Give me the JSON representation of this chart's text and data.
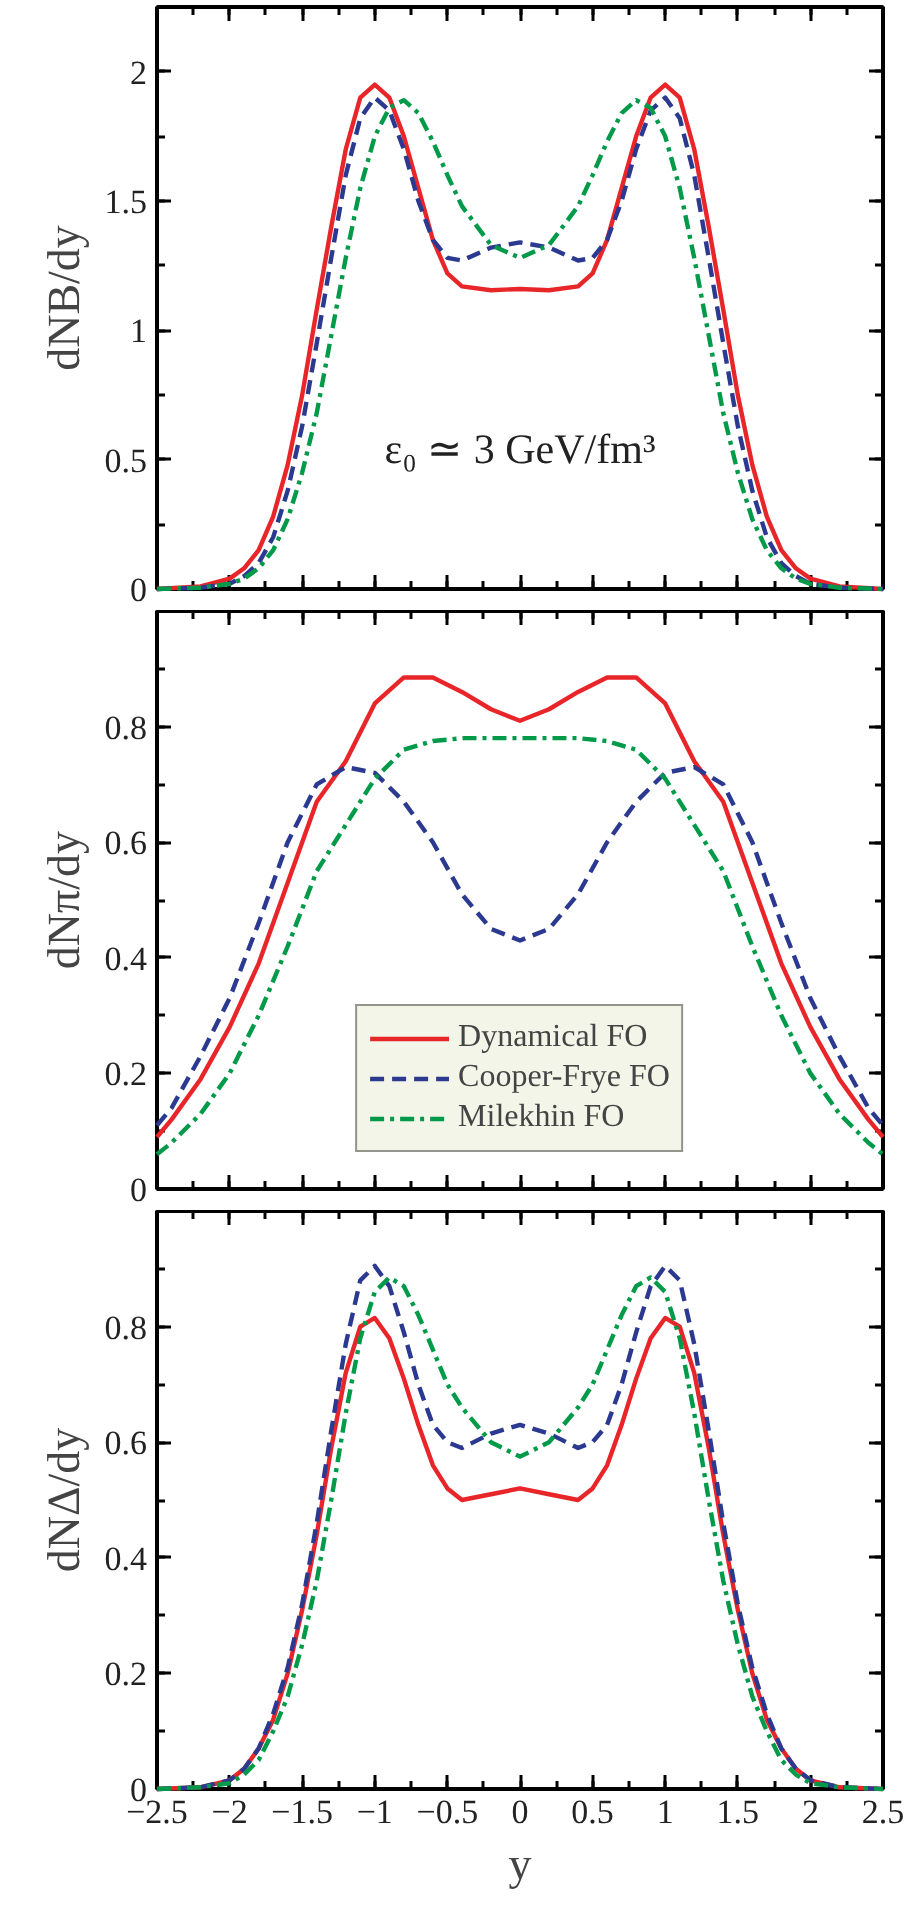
{
  "chart_data": [
    {
      "type": "line",
      "ylabel": "dNB/dy",
      "tick_labels": "y",
      "xlim": [
        -2.5,
        2.5
      ],
      "xticks": [
        -2.5,
        -2,
        -1.5,
        -1,
        -0.5,
        0,
        0.5,
        1,
        1.5,
        2,
        2.5
      ],
      "ylim": [
        0,
        2.25
      ],
      "yticks": [
        0,
        0.5,
        1,
        1.5,
        2
      ],
      "annotations": [
        "ε₀ ≃ 3 GeV/fm³"
      ],
      "x": [
        -2.5,
        -2.2,
        -2.0,
        -1.9,
        -1.8,
        -1.7,
        -1.6,
        -1.5,
        -1.4,
        -1.3,
        -1.2,
        -1.1,
        -1.0,
        -0.9,
        -0.8,
        -0.7,
        -0.6,
        -0.5,
        -0.4,
        -0.2,
        0,
        0.2,
        0.4,
        0.5,
        0.6,
        0.7,
        0.8,
        0.9,
        1.0,
        1.1,
        1.2,
        1.3,
        1.4,
        1.5,
        1.6,
        1.7,
        1.8,
        1.9,
        2.0,
        2.2,
        2.5
      ],
      "series": [
        {
          "color": "#e8262a",
          "line_style": "solid",
          "values": [
            0,
            0.01,
            0.04,
            0.08,
            0.15,
            0.28,
            0.48,
            0.75,
            1.08,
            1.4,
            1.7,
            1.9,
            1.95,
            1.9,
            1.75,
            1.55,
            1.35,
            1.22,
            1.17,
            1.155,
            1.16,
            1.155,
            1.17,
            1.22,
            1.35,
            1.55,
            1.75,
            1.9,
            1.95,
            1.9,
            1.7,
            1.4,
            1.08,
            0.75,
            0.48,
            0.28,
            0.15,
            0.08,
            0.04,
            0.01,
            0
          ]
        },
        {
          "color": "#2b3990",
          "line_style": "dashed",
          "values": [
            0,
            0.005,
            0.02,
            0.05,
            0.1,
            0.2,
            0.38,
            0.63,
            0.95,
            1.28,
            1.6,
            1.82,
            1.9,
            1.85,
            1.7,
            1.5,
            1.35,
            1.28,
            1.27,
            1.32,
            1.34,
            1.32,
            1.27,
            1.28,
            1.35,
            1.5,
            1.7,
            1.85,
            1.9,
            1.82,
            1.6,
            1.28,
            0.95,
            0.63,
            0.38,
            0.2,
            0.1,
            0.05,
            0.02,
            0.005,
            0
          ]
        },
        {
          "color": "#009a49",
          "line_style": "dashdot",
          "values": [
            0,
            0.005,
            0.02,
            0.04,
            0.08,
            0.15,
            0.27,
            0.45,
            0.68,
            0.98,
            1.28,
            1.55,
            1.75,
            1.86,
            1.89,
            1.84,
            1.73,
            1.6,
            1.48,
            1.33,
            1.28,
            1.33,
            1.48,
            1.6,
            1.73,
            1.84,
            1.89,
            1.86,
            1.75,
            1.55,
            1.28,
            0.98,
            0.68,
            0.45,
            0.27,
            0.15,
            0.08,
            0.04,
            0.02,
            0.005,
            0
          ]
        }
      ]
    },
    {
      "type": "line",
      "ylabel": "dNπ/dy",
      "tick_labels": "y",
      "legend": "bottom",
      "xlim": [
        -2.5,
        2.5
      ],
      "xticks": [
        -2.5,
        -2,
        -1.5,
        -1,
        -0.5,
        0,
        0.5,
        1,
        1.5,
        2,
        2.5
      ],
      "ylim": [
        0,
        1
      ],
      "yticks": [
        0,
        0.2,
        0.4,
        0.6,
        0.8
      ],
      "x": [
        -2.5,
        -2.4,
        -2.2,
        -2.0,
        -1.8,
        -1.6,
        -1.4,
        -1.2,
        -1.0,
        -0.8,
        -0.6,
        -0.4,
        -0.2,
        0,
        0.2,
        0.4,
        0.6,
        0.8,
        1.0,
        1.2,
        1.4,
        1.6,
        1.8,
        2.0,
        2.2,
        2.4,
        2.5
      ],
      "series": [
        {
          "name": "Dynamical FO",
          "color": "#e8262a",
          "line_style": "solid",
          "values": [
            0.09,
            0.12,
            0.19,
            0.28,
            0.39,
            0.53,
            0.67,
            0.74,
            0.84,
            0.885,
            0.885,
            0.86,
            0.83,
            0.81,
            0.83,
            0.86,
            0.885,
            0.885,
            0.84,
            0.74,
            0.67,
            0.53,
            0.39,
            0.28,
            0.19,
            0.12,
            0.09
          ]
        },
        {
          "name": "Cooper-Frye FO",
          "color": "#2b3990",
          "line_style": "dashed",
          "values": [
            0.11,
            0.14,
            0.23,
            0.33,
            0.46,
            0.6,
            0.7,
            0.73,
            0.72,
            0.67,
            0.6,
            0.51,
            0.45,
            0.43,
            0.45,
            0.51,
            0.6,
            0.67,
            0.72,
            0.73,
            0.7,
            0.6,
            0.46,
            0.33,
            0.23,
            0.14,
            0.11
          ]
        },
        {
          "name": "Milekhin FO",
          "color": "#009a49",
          "line_style": "dashdot",
          "values": [
            0.06,
            0.08,
            0.13,
            0.2,
            0.3,
            0.42,
            0.55,
            0.63,
            0.71,
            0.76,
            0.775,
            0.78,
            0.78,
            0.78,
            0.78,
            0.78,
            0.775,
            0.76,
            0.71,
            0.63,
            0.55,
            0.42,
            0.3,
            0.2,
            0.13,
            0.08,
            0.06
          ]
        }
      ]
    },
    {
      "type": "line",
      "ylabel": "dNΔ/dy",
      "xlabel": "y",
      "xlim": [
        -2.5,
        2.5
      ],
      "xticks": [
        -2.5,
        -2,
        -1.5,
        -1,
        -0.5,
        0,
        0.5,
        1,
        1.5,
        2,
        2.5
      ],
      "ylim": [
        0,
        1
      ],
      "yticks": [
        0,
        0.2,
        0.4,
        0.6,
        0.8
      ],
      "x": [
        -2.5,
        -2.2,
        -2.0,
        -1.9,
        -1.8,
        -1.7,
        -1.6,
        -1.5,
        -1.4,
        -1.3,
        -1.2,
        -1.1,
        -1.0,
        -0.9,
        -0.8,
        -0.7,
        -0.6,
        -0.5,
        -0.4,
        -0.2,
        0,
        0.2,
        0.4,
        0.5,
        0.6,
        0.7,
        0.8,
        0.9,
        1.0,
        1.1,
        1.2,
        1.3,
        1.4,
        1.5,
        1.6,
        1.7,
        1.8,
        1.9,
        2.0,
        2.2,
        2.5
      ],
      "series": [
        {
          "color": "#e8262a",
          "line_style": "solid",
          "values": [
            0,
            0.003,
            0.015,
            0.035,
            0.07,
            0.12,
            0.2,
            0.31,
            0.44,
            0.59,
            0.72,
            0.8,
            0.815,
            0.78,
            0.71,
            0.63,
            0.56,
            0.52,
            0.5,
            0.51,
            0.52,
            0.51,
            0.5,
            0.52,
            0.56,
            0.63,
            0.71,
            0.78,
            0.815,
            0.8,
            0.72,
            0.59,
            0.44,
            0.31,
            0.2,
            0.12,
            0.07,
            0.035,
            0.015,
            0.003,
            0
          ]
        },
        {
          "color": "#2b3990",
          "line_style": "dashed",
          "values": [
            0,
            0.003,
            0.015,
            0.035,
            0.07,
            0.13,
            0.21,
            0.32,
            0.46,
            0.62,
            0.77,
            0.88,
            0.905,
            0.87,
            0.79,
            0.7,
            0.63,
            0.6,
            0.59,
            0.615,
            0.63,
            0.615,
            0.59,
            0.6,
            0.63,
            0.7,
            0.79,
            0.87,
            0.905,
            0.88,
            0.77,
            0.62,
            0.46,
            0.32,
            0.21,
            0.13,
            0.07,
            0.035,
            0.015,
            0.003,
            0
          ]
        },
        {
          "color": "#009a49",
          "line_style": "dashdot",
          "values": [
            0,
            0.003,
            0.01,
            0.025,
            0.05,
            0.1,
            0.16,
            0.25,
            0.36,
            0.5,
            0.65,
            0.78,
            0.86,
            0.885,
            0.87,
            0.82,
            0.76,
            0.7,
            0.66,
            0.6,
            0.575,
            0.6,
            0.66,
            0.7,
            0.76,
            0.82,
            0.87,
            0.885,
            0.86,
            0.78,
            0.65,
            0.5,
            0.36,
            0.25,
            0.16,
            0.1,
            0.05,
            0.025,
            0.01,
            0.003,
            0
          ]
        }
      ]
    }
  ]
}
